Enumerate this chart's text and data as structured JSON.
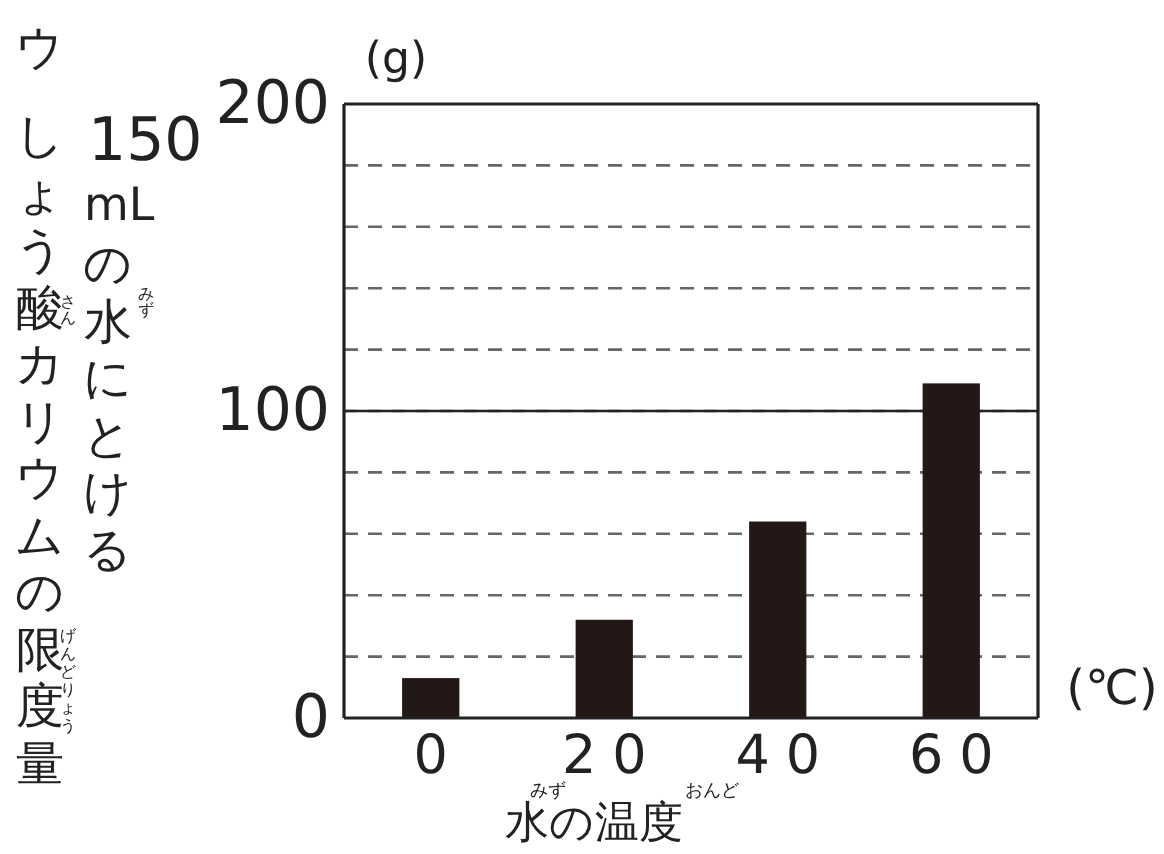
{
  "chart_data": {
    "type": "bar",
    "xlabel": "水の温度",
    "ylabel": "しょう酸カリウムの限度量",
    "categories": [
      "0",
      "20",
      "40",
      "60"
    ],
    "values": [
      13,
      32,
      64,
      109
    ],
    "color": "#231815",
    "ylim": [
      0,
      200
    ],
    "yticks": [
      0,
      {
        "value": 20,
        "label": null
      },
      {
        "value": 40,
        "label": null
      },
      {
        "value": 60,
        "label": null
      },
      {
        "value": 80,
        "label": null
      },
      100,
      {
        "value": 120,
        "label": null
      },
      {
        "value": 140,
        "label": null
      },
      {
        "value": 160,
        "label": null
      },
      {
        "value": 180,
        "label": null
      },
      200
    ],
    "grid": true,
    "ref_lines": [
      {
        "axis": "y",
        "value": 100,
        "color": "#222222",
        "line_style": "solid"
      }
    ],
    "annotations": [
      "ウ",
      "(g)",
      "(℃)",
      "さん",
      "みず",
      "げんどりょう",
      "みず",
      "おんど",
      "150 mLの水にとける"
    ]
  }
}
